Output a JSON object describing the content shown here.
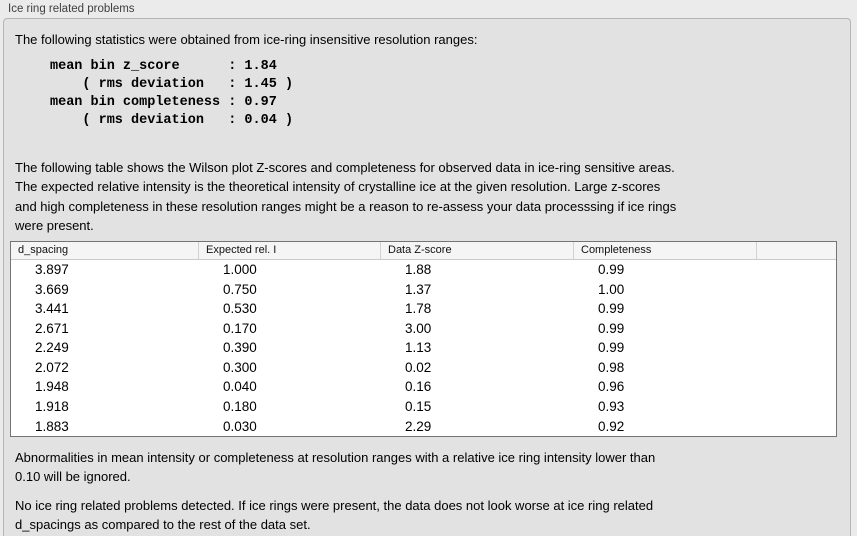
{
  "panel": {
    "title": "Ice ring related problems"
  },
  "stats": {
    "intro": "The following statistics were obtained from ice-ring insensitive resolution ranges:",
    "mono_lines": [
      "mean bin z_score      : 1.84",
      "    ( rms deviation   : 1.45 )",
      "mean bin completeness : 0.97",
      "    ( rms deviation   : 0.04 )"
    ]
  },
  "table_description_lines": [
    "The following table shows the Wilson plot Z-scores and completeness for observed data in ice-ring sensitive areas.",
    "The expected relative intensity is the theoretical intensity of crystalline ice at the given resolution. Large z-scores",
    "and high completeness in these resolution ranges might be a reason to re-assess your data processsing if ice rings",
    "were present."
  ],
  "table": {
    "columns": [
      "d_spacing",
      "Expected rel. I",
      "Data Z-score",
      "Completeness"
    ],
    "rows": [
      [
        "3.897",
        "1.000",
        "1.88",
        "0.99"
      ],
      [
        "3.669",
        "0.750",
        "1.37",
        "1.00"
      ],
      [
        "3.441",
        "0.530",
        "1.78",
        "0.99"
      ],
      [
        "2.671",
        "0.170",
        "3.00",
        "0.99"
      ],
      [
        "2.249",
        "0.390",
        "1.13",
        "0.99"
      ],
      [
        "2.072",
        "0.300",
        "0.02",
        "0.98"
      ],
      [
        "1.948",
        "0.040",
        "0.16",
        "0.96"
      ],
      [
        "1.918",
        "0.180",
        "0.15",
        "0.93"
      ],
      [
        "1.883",
        "0.030",
        "2.29",
        "0.92"
      ]
    ]
  },
  "notes": {
    "ignore_note_lines": [
      "Abnormalities in mean intensity or completeness at resolution ranges with a relative ice ring intensity lower than",
      "0.10 will be ignored."
    ],
    "conclusion_lines": [
      "No ice ring related problems detected. If ice rings were present, the data does not look worse at ice ring related",
      "d_spacings as compared to the rest of the data set."
    ]
  },
  "colors": {
    "page_background": "#ebebeb",
    "panel_background": "#e2e2e2",
    "panel_border": "#b5b5b5",
    "table_border": "#747474",
    "table_header_background": "#f5f5f5",
    "text": "#000000"
  }
}
